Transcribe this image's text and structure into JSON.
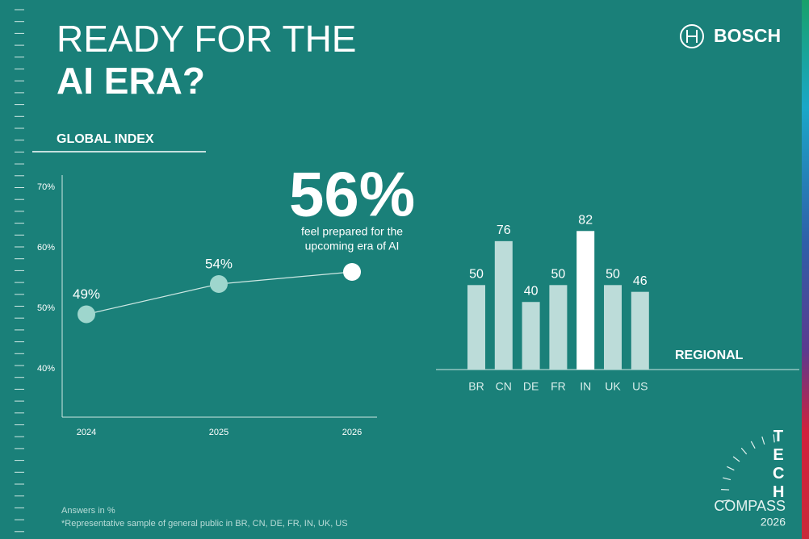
{
  "header": {
    "title_line1": "READY FOR THE",
    "title_line2": "AI ERA?",
    "brand": "BOSCH"
  },
  "sections": {
    "global": "GLOBAL INDEX",
    "regional": "REGIONAL"
  },
  "chart_data": [
    {
      "type": "line",
      "categories": [
        "2024",
        "2025",
        "2026"
      ],
      "values": [
        49,
        54,
        56
      ],
      "value_labels": [
        "49%",
        "54%",
        "56%"
      ],
      "annotation": [
        "feel prepared for the",
        "upcoming era of AI"
      ],
      "color": "#cfe8e4",
      "point_colors": [
        "#9ed6cd",
        "#9ed6cd",
        "#ffffff"
      ],
      "ylim": [
        32,
        72
      ],
      "yticks": [
        {
          "value": 40,
          "label": "40%"
        },
        {
          "value": 50,
          "label": "50%"
        },
        {
          "value": 60,
          "label": "60%"
        },
        {
          "value": 70,
          "label": "70%"
        }
      ]
    },
    {
      "type": "bar",
      "categories": [
        "BR",
        "CN",
        "DE",
        "FR",
        "IN",
        "UK",
        "US"
      ],
      "values": [
        50,
        76,
        40,
        50,
        82,
        50,
        46
      ],
      "colors": [
        "#bcdcd9",
        "#bcdcd9",
        "#bcdcd9",
        "#bcdcd9",
        "#ffffff",
        "#bcdcd9",
        "#bcdcd9"
      ]
    }
  ],
  "footnotes": [
    "Answers in %",
    "*Representative sample of general public in BR, CN, DE, FR, IN, UK, US"
  ],
  "logo": {
    "tech": "TECH",
    "compass": "COMPASS",
    "year": "2026"
  }
}
